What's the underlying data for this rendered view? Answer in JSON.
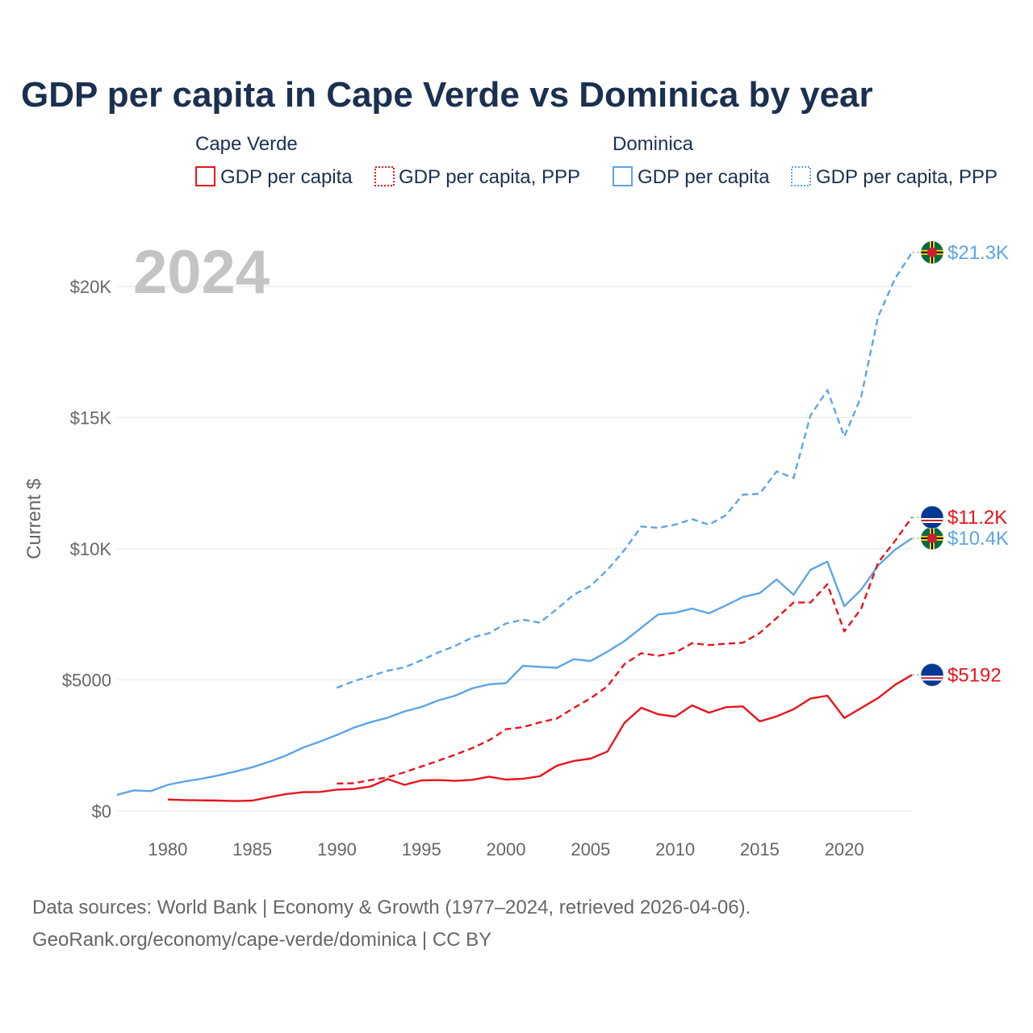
{
  "title": "GDP per capita in Cape Verde vs Dominica by year",
  "year_watermark": "2024",
  "legend": {
    "cape_verde": {
      "name": "Cape Verde",
      "gdp": "GDP per capita",
      "ppp": "GDP per capita, PPP"
    },
    "dominica": {
      "name": "Dominica",
      "gdp": "GDP per capita",
      "ppp": "GDP per capita, PPP"
    }
  },
  "colors": {
    "cape_verde": "#e8141d",
    "dominica": "#5ea5e6",
    "grid": "#e6e6e6",
    "text": "#1b3050",
    "muted": "#666666"
  },
  "footer": {
    "line1": "Data sources: World Bank | Economy & Growth (1977–2024, retrieved 2026-04-06).",
    "line2": "GeoRank.org/economy/cape-verde/dominica | CC BY"
  },
  "chart_data": {
    "type": "line",
    "title": "GDP per capita in Cape Verde vs Dominica by year",
    "xlabel": "",
    "ylabel": "Current $",
    "xlim": [
      1977,
      2024
    ],
    "ylim": [
      0,
      22000
    ],
    "x_ticks": [
      1980,
      1985,
      1990,
      1995,
      2000,
      2005,
      2010,
      2015,
      2020
    ],
    "y_ticks": [
      0,
      5000,
      10000,
      15000,
      20000
    ],
    "y_tick_labels": [
      "$0",
      "$5000",
      "$10K",
      "$15K",
      "$20K"
    ],
    "series": [
      {
        "name": "Dominica GDP per capita, PPP",
        "country": "dominica",
        "style": "dashed",
        "end_label": "$21.3K",
        "x": [
          1990,
          1991,
          1992,
          1993,
          1994,
          1995,
          1996,
          1997,
          1998,
          1999,
          2000,
          2001,
          2002,
          2003,
          2004,
          2005,
          2006,
          2007,
          2008,
          2009,
          2010,
          2011,
          2012,
          2013,
          2014,
          2015,
          2016,
          2017,
          2018,
          2019,
          2020,
          2021,
          2022,
          2023,
          2024
        ],
        "values": [
          4700,
          4950,
          5150,
          5350,
          5480,
          5750,
          6050,
          6300,
          6620,
          6780,
          7150,
          7300,
          7180,
          7700,
          8250,
          8580,
          9200,
          9950,
          10850,
          10800,
          10920,
          11130,
          10920,
          11280,
          12060,
          12100,
          12950,
          12700,
          15080,
          16050,
          14280,
          15800,
          18850,
          20300,
          21300
        ]
      },
      {
        "name": "Dominica GDP per capita",
        "country": "dominica",
        "style": "solid",
        "end_label": "$10.4K",
        "x": [
          1977,
          1978,
          1979,
          1980,
          1981,
          1982,
          1983,
          1984,
          1985,
          1986,
          1987,
          1988,
          1989,
          1990,
          1991,
          1992,
          1993,
          1994,
          1995,
          1996,
          1997,
          1998,
          1999,
          2000,
          2001,
          2002,
          2003,
          2004,
          2005,
          2006,
          2007,
          2008,
          2009,
          2010,
          2011,
          2012,
          2013,
          2014,
          2015,
          2016,
          2017,
          2018,
          2019,
          2020,
          2021,
          2022,
          2023,
          2024
        ],
        "values": [
          620,
          790,
          760,
          1000,
          1130,
          1230,
          1360,
          1510,
          1670,
          1880,
          2120,
          2420,
          2650,
          2900,
          3180,
          3390,
          3560,
          3800,
          3970,
          4220,
          4400,
          4680,
          4830,
          4880,
          5540,
          5500,
          5460,
          5790,
          5720,
          6080,
          6480,
          6990,
          7500,
          7560,
          7720,
          7540,
          7840,
          8160,
          8310,
          8830,
          8250,
          9200,
          9510,
          7810,
          8440,
          9360,
          9960,
          10400
        ]
      },
      {
        "name": "Cape Verde GDP per capita, PPP",
        "country": "cape_verde",
        "style": "dashed",
        "end_label": "$11.2K",
        "x": [
          1990,
          1991,
          1992,
          1993,
          1994,
          1995,
          1996,
          1997,
          1998,
          1999,
          2000,
          2001,
          2002,
          2003,
          2004,
          2005,
          2006,
          2007,
          2008,
          2009,
          2010,
          2011,
          2012,
          2013,
          2014,
          2015,
          2016,
          2017,
          2018,
          2019,
          2020,
          2021,
          2022,
          2023,
          2024
        ],
        "values": [
          1050,
          1060,
          1180,
          1290,
          1480,
          1700,
          1920,
          2150,
          2400,
          2700,
          3120,
          3200,
          3380,
          3530,
          3930,
          4300,
          4760,
          5600,
          6020,
          5920,
          6040,
          6400,
          6330,
          6380,
          6420,
          6790,
          7360,
          7950,
          7950,
          8650,
          6850,
          7720,
          9470,
          10300,
          11200
        ]
      },
      {
        "name": "Cape Verde GDP per capita",
        "country": "cape_verde",
        "style": "solid",
        "end_label": "$5192",
        "x": [
          1980,
          1981,
          1982,
          1983,
          1984,
          1985,
          1986,
          1987,
          1988,
          1989,
          1990,
          1991,
          1992,
          1993,
          1994,
          1995,
          1996,
          1997,
          1998,
          1999,
          2000,
          2001,
          2002,
          2003,
          2004,
          2005,
          2006,
          2007,
          2008,
          2009,
          2010,
          2011,
          2012,
          2013,
          2014,
          2015,
          2016,
          2017,
          2018,
          2019,
          2020,
          2021,
          2022,
          2023,
          2024
        ],
        "values": [
          440,
          420,
          410,
          400,
          380,
          400,
          530,
          650,
          720,
          730,
          820,
          840,
          940,
          1220,
          1000,
          1170,
          1180,
          1150,
          1190,
          1310,
          1200,
          1230,
          1330,
          1730,
          1910,
          2000,
          2270,
          3360,
          3940,
          3690,
          3600,
          4030,
          3750,
          3960,
          3990,
          3420,
          3610,
          3880,
          4290,
          4400,
          3550,
          3930,
          4310,
          4810,
          5192
        ]
      }
    ]
  }
}
